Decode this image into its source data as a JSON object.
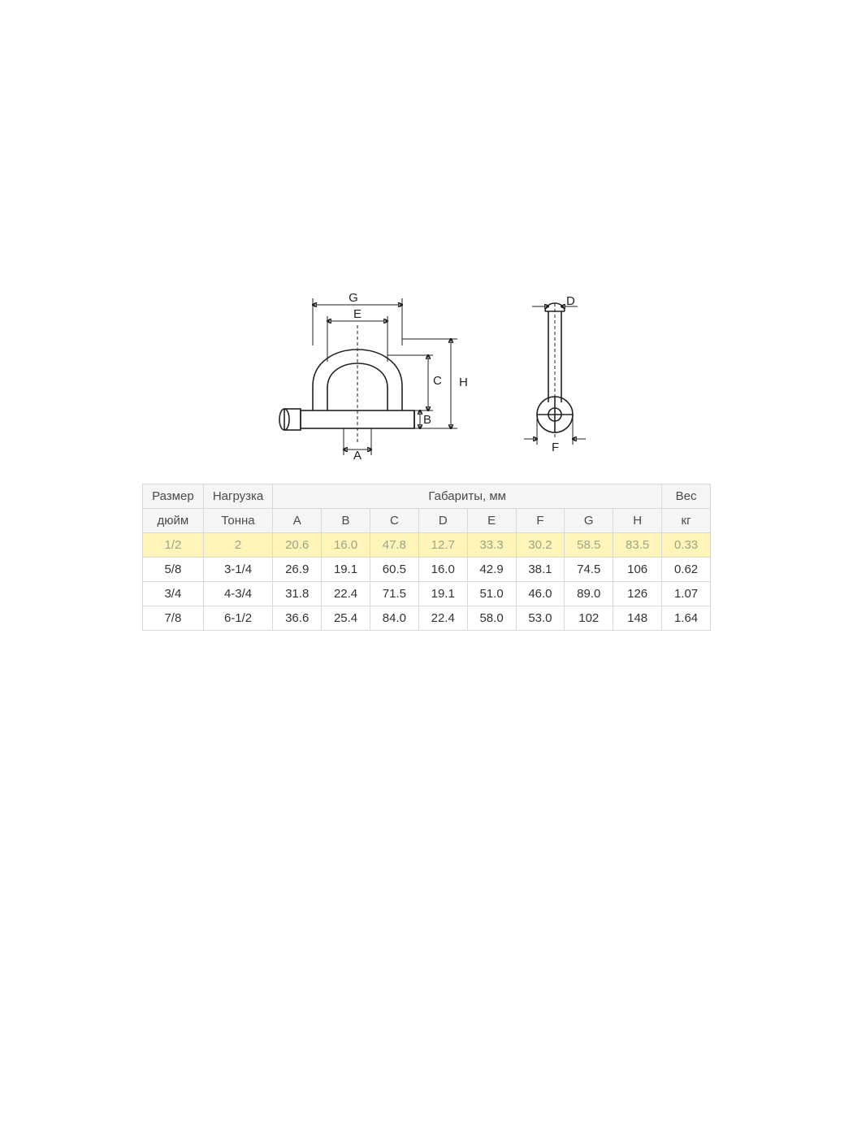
{
  "diagram": {
    "labels": {
      "A": "A",
      "B": "B",
      "C": "C",
      "D": "D",
      "E": "E",
      "F": "F",
      "G": "G",
      "H": "H"
    },
    "stroke_color": "#222222",
    "stroke_width_main": 1.6,
    "stroke_width_thin": 1.0,
    "font_size_pt": 15
  },
  "table": {
    "header1": {
      "size": "Размер",
      "load": "Нагрузка",
      "dims": "Габариты, мм",
      "weight": "Вес"
    },
    "header2": {
      "size_unit": "дюйм",
      "load_unit": "Тонна",
      "dim_cols": [
        "A",
        "B",
        "C",
        "D",
        "E",
        "F",
        "G",
        "H"
      ],
      "weight_unit": "кг"
    },
    "highlight_row_index": 0,
    "highlight_bg": "#fff5b8",
    "highlight_fg": "#9aa68a",
    "border_color": "#d9d9d9",
    "header_bg": "#f5f5f5",
    "font_size_pt": 15,
    "rows": [
      {
        "size": "1/2",
        "load": "2",
        "A": "20.6",
        "B": "16.0",
        "C": "47.8",
        "D": "12.7",
        "E": "33.3",
        "F": "30.2",
        "G": "58.5",
        "H": "83.5",
        "wt": "0.33"
      },
      {
        "size": "5/8",
        "load": "3-1/4",
        "A": "26.9",
        "B": "19.1",
        "C": "60.5",
        "D": "16.0",
        "E": "42.9",
        "F": "38.1",
        "G": "74.5",
        "H": "106",
        "wt": "0.62"
      },
      {
        "size": "3/4",
        "load": "4-3/4",
        "A": "31.8",
        "B": "22.4",
        "C": "71.5",
        "D": "19.1",
        "E": "51.0",
        "F": "46.0",
        "G": "89.0",
        "H": "126",
        "wt": "1.07"
      },
      {
        "size": "7/8",
        "load": "6-1/2",
        "A": "36.6",
        "B": "25.4",
        "C": "84.0",
        "D": "22.4",
        "E": "58.0",
        "F": "53.0",
        "G": "102",
        "H": "148",
        "wt": "1.64"
      }
    ]
  }
}
